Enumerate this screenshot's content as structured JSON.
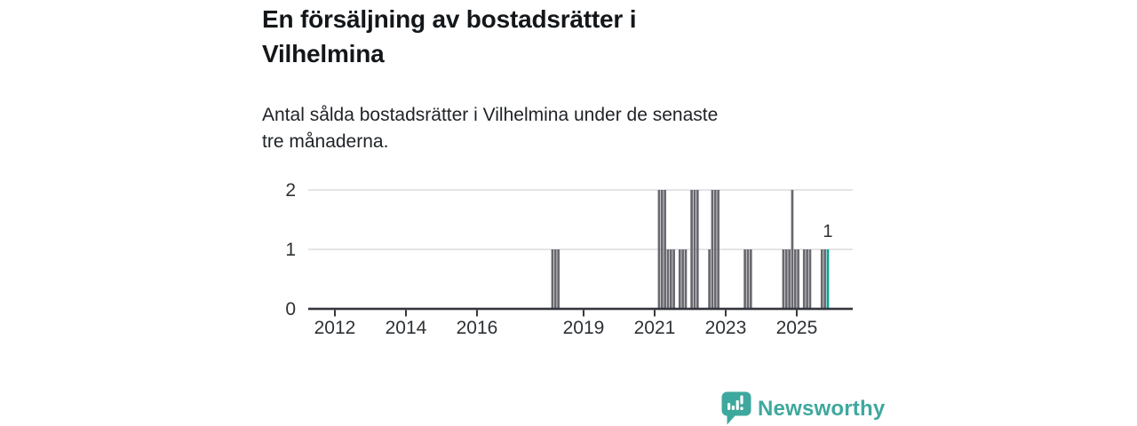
{
  "header": {
    "title_lines": [
      "En försäljning av bostadsrätter i",
      "Vilhelmina"
    ],
    "subtitle_lines": [
      "Antal sålda bostadsrätter i Vilhelmina under de senaste",
      "tre månaderna."
    ]
  },
  "chart_data": {
    "type": "bar",
    "title": "En försäljning av bostadsrätter i Vilhelmina",
    "xlabel": "",
    "ylabel": "",
    "ylim": [
      0,
      2
    ],
    "y_ticks": [
      "0",
      "1",
      "2"
    ],
    "grid": true,
    "x_range_months": [
      "2011-04",
      "2026-06"
    ],
    "x_tick_years": [
      2012,
      2014,
      2016,
      2019,
      2021,
      2023,
      2025
    ],
    "x_tick_labels": [
      "2012",
      "2014",
      "2016",
      "2019",
      "2021",
      "2023",
      "2025"
    ],
    "bar_color": "#68686f",
    "highlight_color": "#09a599",
    "axis_color": "#34363e",
    "grid_color": "#dcdcde",
    "label_color": "#2d3135",
    "last_bar_label": "1",
    "bars": [
      {
        "month": "2018-02",
        "value": 1
      },
      {
        "month": "2018-03",
        "value": 1
      },
      {
        "month": "2018-04",
        "value": 1
      },
      {
        "month": "2021-02",
        "value": 2
      },
      {
        "month": "2021-03",
        "value": 2
      },
      {
        "month": "2021-04",
        "value": 2
      },
      {
        "month": "2021-05",
        "value": 1
      },
      {
        "month": "2021-06",
        "value": 1
      },
      {
        "month": "2021-07",
        "value": 1
      },
      {
        "month": "2021-09",
        "value": 1
      },
      {
        "month": "2021-10",
        "value": 1
      },
      {
        "month": "2021-11",
        "value": 1
      },
      {
        "month": "2022-01",
        "value": 2
      },
      {
        "month": "2022-02",
        "value": 2
      },
      {
        "month": "2022-03",
        "value": 2
      },
      {
        "month": "2022-07",
        "value": 1
      },
      {
        "month": "2022-08",
        "value": 2
      },
      {
        "month": "2022-09",
        "value": 2
      },
      {
        "month": "2022-10",
        "value": 2
      },
      {
        "month": "2023-07",
        "value": 1
      },
      {
        "month": "2023-08",
        "value": 1
      },
      {
        "month": "2023-09",
        "value": 1
      },
      {
        "month": "2024-08",
        "value": 1
      },
      {
        "month": "2024-09",
        "value": 1
      },
      {
        "month": "2024-10",
        "value": 1
      },
      {
        "month": "2024-11",
        "value": 2
      },
      {
        "month": "2024-12",
        "value": 1
      },
      {
        "month": "2025-01",
        "value": 1
      },
      {
        "month": "2025-03",
        "value": 1
      },
      {
        "month": "2025-04",
        "value": 1
      },
      {
        "month": "2025-05",
        "value": 1
      },
      {
        "month": "2025-09",
        "value": 1
      },
      {
        "month": "2025-10",
        "value": 1
      },
      {
        "month": "2025-11",
        "value": 1,
        "highlight": true,
        "label": "1"
      }
    ]
  },
  "footer": {
    "brand": "Newsworthy",
    "brand_color": "#3ea89e"
  }
}
